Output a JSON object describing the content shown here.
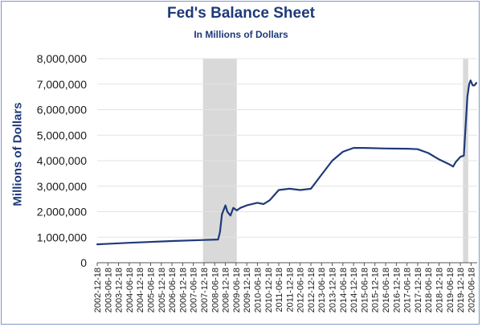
{
  "chart_data": {
    "type": "line",
    "title": "Fed's Balance Sheet",
    "subtitle": "In Millions of Dollars",
    "xlabel": "",
    "ylabel": "Millions of Dollars",
    "ylim": [
      0,
      8000000
    ],
    "y_ticks": [
      0,
      1000000,
      2000000,
      3000000,
      4000000,
      5000000,
      6000000,
      7000000,
      8000000
    ],
    "y_tick_labels": [
      "0",
      "1,000,000",
      "2,000,000",
      "3,000,000",
      "4,000,000",
      "5,000,000",
      "6,000,000",
      "7,000,000",
      "8,000,000"
    ],
    "xlim": [
      "2002-12-18",
      "2020-09-30"
    ],
    "x_tick_labels": [
      "2002-12-18",
      "2003-06-18",
      "2003-12-18",
      "2004-06-18",
      "2004-12-18",
      "2005-06-18",
      "2005-12-18",
      "2006-06-18",
      "2006-12-18",
      "2007-06-18",
      "2007-12-18",
      "2008-06-18",
      "2008-12-18",
      "2009-06-18",
      "2009-12-18",
      "2010-06-18",
      "2010-12-18",
      "2011-06-18",
      "2011-12-18",
      "2012-06-18",
      "2012-12-18",
      "2013-06-18",
      "2013-12-18",
      "2014-06-18",
      "2014-12-18",
      "2015-06-18",
      "2015-12-18",
      "2016-06-18",
      "2016-12-18",
      "2017-06-18",
      "2017-12-18",
      "2018-06-18",
      "2018-12-18",
      "2019-06-18",
      "2019-12-18",
      "2020-06-18"
    ],
    "grid": "horizontal",
    "line_color": "#1f3a7a",
    "shade_color": "#d9d9d9",
    "shaded_periods": [
      {
        "start": "2007-12-01",
        "end": "2009-06-30"
      },
      {
        "start": "2020-02-01",
        "end": "2020-04-30"
      }
    ],
    "series": [
      {
        "values": [
          {
            "x": "2002-12-18",
            "y": 720000
          },
          {
            "x": "2004-06-18",
            "y": 780000
          },
          {
            "x": "2006-06-18",
            "y": 850000
          },
          {
            "x": "2007-12-18",
            "y": 890000
          },
          {
            "x": "2008-08-15",
            "y": 910000
          },
          {
            "x": "2008-09-15",
            "y": 1200000
          },
          {
            "x": "2008-10-20",
            "y": 1900000
          },
          {
            "x": "2008-12-18",
            "y": 2250000
          },
          {
            "x": "2009-01-20",
            "y": 2000000
          },
          {
            "x": "2009-03-15",
            "y": 1850000
          },
          {
            "x": "2009-05-01",
            "y": 2150000
          },
          {
            "x": "2009-07-01",
            "y": 2050000
          },
          {
            "x": "2009-09-01",
            "y": 2150000
          },
          {
            "x": "2009-12-18",
            "y": 2250000
          },
          {
            "x": "2010-06-18",
            "y": 2350000
          },
          {
            "x": "2010-10-01",
            "y": 2300000
          },
          {
            "x": "2011-01-15",
            "y": 2450000
          },
          {
            "x": "2011-06-18",
            "y": 2850000
          },
          {
            "x": "2011-12-18",
            "y": 2900000
          },
          {
            "x": "2012-06-18",
            "y": 2850000
          },
          {
            "x": "2012-12-18",
            "y": 2900000
          },
          {
            "x": "2013-06-18",
            "y": 3450000
          },
          {
            "x": "2013-12-18",
            "y": 4000000
          },
          {
            "x": "2014-06-18",
            "y": 4350000
          },
          {
            "x": "2014-12-18",
            "y": 4500000
          },
          {
            "x": "2015-06-18",
            "y": 4500000
          },
          {
            "x": "2016-06-18",
            "y": 4480000
          },
          {
            "x": "2017-06-18",
            "y": 4470000
          },
          {
            "x": "2017-12-18",
            "y": 4450000
          },
          {
            "x": "2018-06-18",
            "y": 4300000
          },
          {
            "x": "2018-12-18",
            "y": 4050000
          },
          {
            "x": "2019-06-18",
            "y": 3850000
          },
          {
            "x": "2019-08-15",
            "y": 3770000
          },
          {
            "x": "2019-10-01",
            "y": 3950000
          },
          {
            "x": "2019-12-18",
            "y": 4150000
          },
          {
            "x": "2020-02-15",
            "y": 4200000
          },
          {
            "x": "2020-03-15",
            "y": 5300000
          },
          {
            "x": "2020-04-15",
            "y": 6500000
          },
          {
            "x": "2020-05-15",
            "y": 7000000
          },
          {
            "x": "2020-06-10",
            "y": 7150000
          },
          {
            "x": "2020-07-15",
            "y": 6950000
          },
          {
            "x": "2020-08-15",
            "y": 6950000
          },
          {
            "x": "2020-09-15",
            "y": 7050000
          }
        ]
      }
    ]
  }
}
